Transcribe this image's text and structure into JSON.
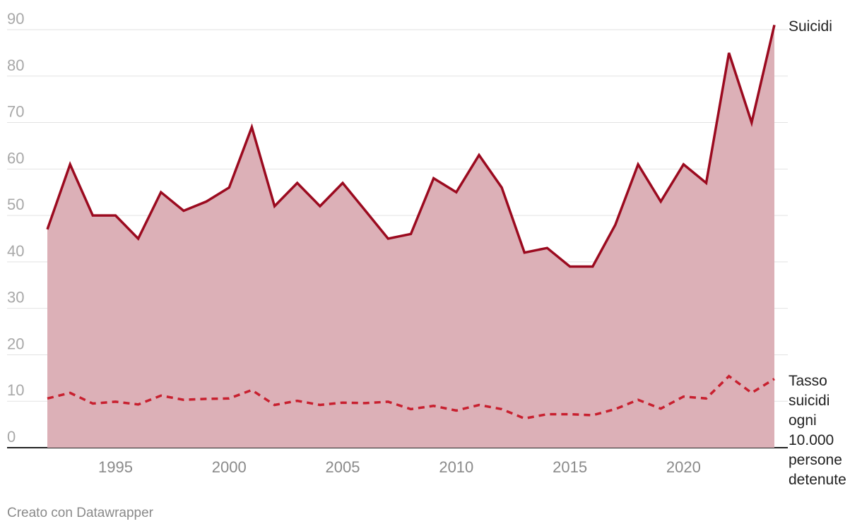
{
  "chart_data": {
    "type": "area",
    "x": [
      1992,
      1993,
      1994,
      1995,
      1996,
      1997,
      1998,
      1999,
      2000,
      2001,
      2002,
      2003,
      2004,
      2005,
      2006,
      2007,
      2008,
      2009,
      2010,
      2011,
      2012,
      2013,
      2014,
      2015,
      2016,
      2017,
      2018,
      2019,
      2020,
      2021,
      2022,
      2023,
      2024
    ],
    "series": [
      {
        "name": "Suicidi",
        "style": "solid-with-area",
        "color": "#9b0a1f",
        "fill": "#dcb0b7",
        "values": [
          47,
          61,
          50,
          50,
          45,
          55,
          51,
          53,
          56,
          69,
          52,
          57,
          52,
          57,
          51,
          45,
          46,
          58,
          55,
          63,
          56,
          42,
          43,
          39,
          39,
          48,
          61,
          53,
          61,
          57,
          85,
          70,
          91
        ]
      },
      {
        "name": "Tasso suicidi ogni 10.000 persone detenute",
        "style": "dashed",
        "color": "#c8202f",
        "values": [
          10.6,
          11.8,
          9.5,
          9.9,
          9.3,
          11.2,
          10.3,
          10.5,
          10.6,
          12.4,
          9.2,
          10.1,
          9.2,
          9.7,
          9.6,
          9.9,
          8.3,
          9.0,
          8.0,
          9.2,
          8.3,
          6.3,
          7.2,
          7.2,
          7.0,
          8.3,
          10.3,
          8.4,
          11.0,
          10.6,
          15.4,
          11.8,
          14.8
        ]
      }
    ],
    "ylim": [
      0,
      90
    ],
    "yticks": [
      "0",
      "10",
      "20",
      "30",
      "40",
      "50",
      "60",
      "70",
      "80",
      "90"
    ],
    "xticks": [
      "1995",
      "2000",
      "2005",
      "2010",
      "2015",
      "2020"
    ],
    "grid": true,
    "series_labels": {
      "top": [
        "Suicidi"
      ],
      "bottom": [
        "Tasso",
        "suicidi",
        "ogni",
        "10.000",
        "persone",
        "detenute"
      ]
    }
  },
  "footer": {
    "credit": "Creato con Datawrapper"
  }
}
